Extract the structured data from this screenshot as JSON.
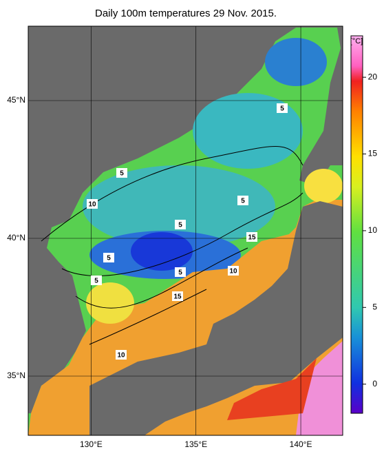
{
  "map": {
    "title": "Daily 100m temperatures 29 Nov. 2015.",
    "lonlim": [
      127,
      142
    ],
    "latlim": [
      32.85,
      47.7
    ],
    "lonticks": [
      {
        "value": 130,
        "label": "130°E"
      },
      {
        "value": 135,
        "label": "135°E"
      },
      {
        "value": 140,
        "label": "140°E"
      }
    ],
    "latticks": [
      {
        "value": 35,
        "label": "35°N"
      },
      {
        "value": 40,
        "label": "40°N"
      },
      {
        "value": 45,
        "label": "45°N"
      }
    ],
    "contour_labels": [
      5,
      5,
      10,
      5,
      5,
      15,
      5,
      5,
      5,
      10,
      15,
      10
    ]
  },
  "colorbar": {
    "unit": "[°C]",
    "lim": [
      -1.9,
      22.7
    ],
    "ticks": [
      0,
      5,
      10,
      15,
      20
    ]
  }
}
